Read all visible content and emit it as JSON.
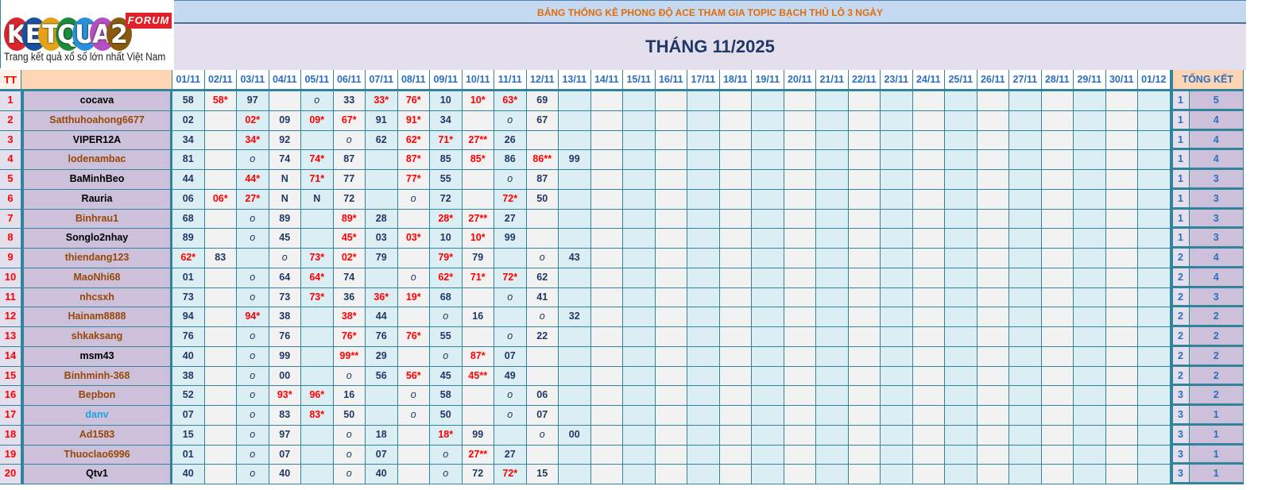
{
  "logo": {
    "letters": [
      "K",
      "E",
      "T",
      "Q",
      "U",
      "A",
      "2"
    ],
    "colors": [
      "#d8262e",
      "#1c4f9c",
      "#e3a21a",
      "#1e8a3c",
      "#2a8fd6",
      "#b44fc2",
      "#8a5a12"
    ],
    "forum": "FORUM",
    "tagline": "Trang kết quả xổ số lớn nhất Việt Nam"
  },
  "title": "BẢNG THỐNG KÊ PHONG ĐỘ ACE THAM GIA TOPIC BẠCH THỦ LÔ 3 NGÀY",
  "month": "THÁNG 11/2025",
  "header": {
    "tt": "TT",
    "name": "",
    "summary": "TỔNG KẾT"
  },
  "dates": [
    "01/11",
    "02/11",
    "03/11",
    "04/11",
    "05/11",
    "06/11",
    "07/11",
    "08/11",
    "09/11",
    "10/11",
    "11/11",
    "12/11",
    "13/11",
    "14/11",
    "15/11",
    "16/11",
    "17/11",
    "18/11",
    "19/11",
    "20/11",
    "21/11",
    "22/11",
    "23/11",
    "24/11",
    "25/11",
    "26/11",
    "27/11",
    "28/11",
    "29/11",
    "30/11",
    "01/12"
  ],
  "colors": {
    "black": "#000000",
    "brown": "#974706",
    "blue": "#1ea0e6",
    "hit": "#ff0000",
    "number": "#1f3864",
    "header": "#2a6fbf",
    "title": "#e26b0a"
  },
  "rows": [
    {
      "tt": "1",
      "name": "cocava",
      "color": "black",
      "cells": [
        "58",
        "58*",
        "97",
        "",
        "o",
        "33",
        "33*",
        "76*",
        "10",
        "10*",
        "63*",
        "69"
      ],
      "s1": "1",
      "s2": "5"
    },
    {
      "tt": "2",
      "name": "Satthuhoahong6677",
      "color": "brown",
      "cells": [
        "02",
        "",
        "02*",
        "09",
        "09*",
        "67*",
        "91",
        "91*",
        "34",
        "",
        "o",
        "67"
      ],
      "s1": "1",
      "s2": "4"
    },
    {
      "tt": "3",
      "name": "VIPER12A",
      "color": "black",
      "cells": [
        "34",
        "",
        "34*",
        "92",
        "",
        "o",
        "62",
        "62*",
        "71*",
        "27**",
        "26"
      ],
      "s1": "1",
      "s2": "4"
    },
    {
      "tt": "4",
      "name": "lodenambac",
      "color": "brown",
      "cells": [
        "81",
        "",
        "o",
        "74",
        "74*",
        "87",
        "",
        "87*",
        "85",
        "85*",
        "86",
        "86**",
        "99"
      ],
      "s1": "1",
      "s2": "4"
    },
    {
      "tt": "5",
      "name": "BaMinhBeo",
      "color": "black",
      "cells": [
        "44",
        "",
        "44*",
        "N",
        "71*",
        "77",
        "",
        "77*",
        "55",
        "",
        "o",
        "87"
      ],
      "s1": "1",
      "s2": "3"
    },
    {
      "tt": "6",
      "name": "Rauria",
      "color": "black",
      "cells": [
        "06",
        "06*",
        "27*",
        "N",
        "N",
        "72",
        "",
        "o",
        "72",
        "",
        "72*",
        "50"
      ],
      "s1": "1",
      "s2": "3"
    },
    {
      "tt": "7",
      "name": "Binhrau1",
      "color": "brown",
      "cells": [
        "68",
        "",
        "o",
        "89",
        "",
        "89*",
        "28",
        "",
        "28*",
        "27**",
        "27"
      ],
      "s1": "1",
      "s2": "3"
    },
    {
      "tt": "8",
      "name": "Songlo2nhay",
      "color": "black",
      "cells": [
        "89",
        "",
        "o",
        "45",
        "",
        "45*",
        "03",
        "03*",
        "10",
        "10*",
        "99"
      ],
      "s1": "1",
      "s2": "3"
    },
    {
      "tt": "9",
      "name": "thiendang123",
      "color": "brown",
      "cells": [
        "62*",
        "83",
        "",
        "o",
        "73*",
        "02*",
        "79",
        "",
        "79*",
        "79",
        "",
        "o",
        "43"
      ],
      "s1": "2",
      "s2": "4"
    },
    {
      "tt": "10",
      "name": "MaoNhi68",
      "color": "brown",
      "cells": [
        "01",
        "",
        "o",
        "64",
        "64*",
        "74",
        "",
        "o",
        "62*",
        "71*",
        "72*",
        "62"
      ],
      "s1": "2",
      "s2": "4"
    },
    {
      "tt": "11",
      "name": "nhcsxh",
      "color": "brown",
      "cells": [
        "73",
        "",
        "o",
        "73",
        "73*",
        "36",
        "36*",
        "19*",
        "68",
        "",
        "o",
        "41"
      ],
      "s1": "2",
      "s2": "3"
    },
    {
      "tt": "12",
      "name": "Hainam8888",
      "color": "brown",
      "cells": [
        "94",
        "",
        "94*",
        "38",
        "",
        "38*",
        "44",
        "",
        "o",
        "16",
        "",
        "o",
        "32"
      ],
      "s1": "2",
      "s2": "2"
    },
    {
      "tt": "13",
      "name": "shkaksang",
      "color": "brown",
      "cells": [
        "76",
        "",
        "o",
        "76",
        "",
        "76*",
        "76",
        "76*",
        "55",
        "",
        "o",
        "22"
      ],
      "s1": "2",
      "s2": "2"
    },
    {
      "tt": "14",
      "name": "msm43",
      "color": "black",
      "cells": [
        "40",
        "",
        "o",
        "99",
        "",
        "99**",
        "29",
        "",
        "o",
        "87*",
        "07"
      ],
      "s1": "2",
      "s2": "2"
    },
    {
      "tt": "15",
      "name": "Binhminh-368",
      "color": "brown",
      "cells": [
        "38",
        "",
        "o",
        "00",
        "",
        "o",
        "56",
        "56*",
        "45",
        "45**",
        "49"
      ],
      "s1": "2",
      "s2": "2"
    },
    {
      "tt": "16",
      "name": "Bepbon",
      "color": "brown",
      "cells": [
        "52",
        "",
        "o",
        "93*",
        "96*",
        "16",
        "",
        "o",
        "58",
        "",
        "o",
        "06"
      ],
      "s1": "3",
      "s2": "2"
    },
    {
      "tt": "17",
      "name": "danv",
      "color": "blue",
      "cells": [
        "07",
        "",
        "o",
        "83",
        "83*",
        "50",
        "",
        "o",
        "50",
        "",
        "o",
        "07"
      ],
      "s1": "3",
      "s2": "1"
    },
    {
      "tt": "18",
      "name": "Ad1583",
      "color": "brown",
      "cells": [
        "15",
        "",
        "o",
        "97",
        "",
        "o",
        "18",
        "",
        "18*",
        "99",
        "",
        "o",
        "00"
      ],
      "s1": "3",
      "s2": "1"
    },
    {
      "tt": "19",
      "name": "Thuoclao6996",
      "color": "brown",
      "cells": [
        "01",
        "",
        "o",
        "07",
        "",
        "o",
        "07",
        "",
        "o",
        "27**",
        "27"
      ],
      "s1": "3",
      "s2": "1"
    },
    {
      "tt": "20",
      "name": "Qtv1",
      "color": "black",
      "cells": [
        "40",
        "",
        "o",
        "40",
        "",
        "o",
        "40",
        "",
        "o",
        "72",
        "72*",
        "15"
      ],
      "s1": "3",
      "s2": "1"
    }
  ]
}
